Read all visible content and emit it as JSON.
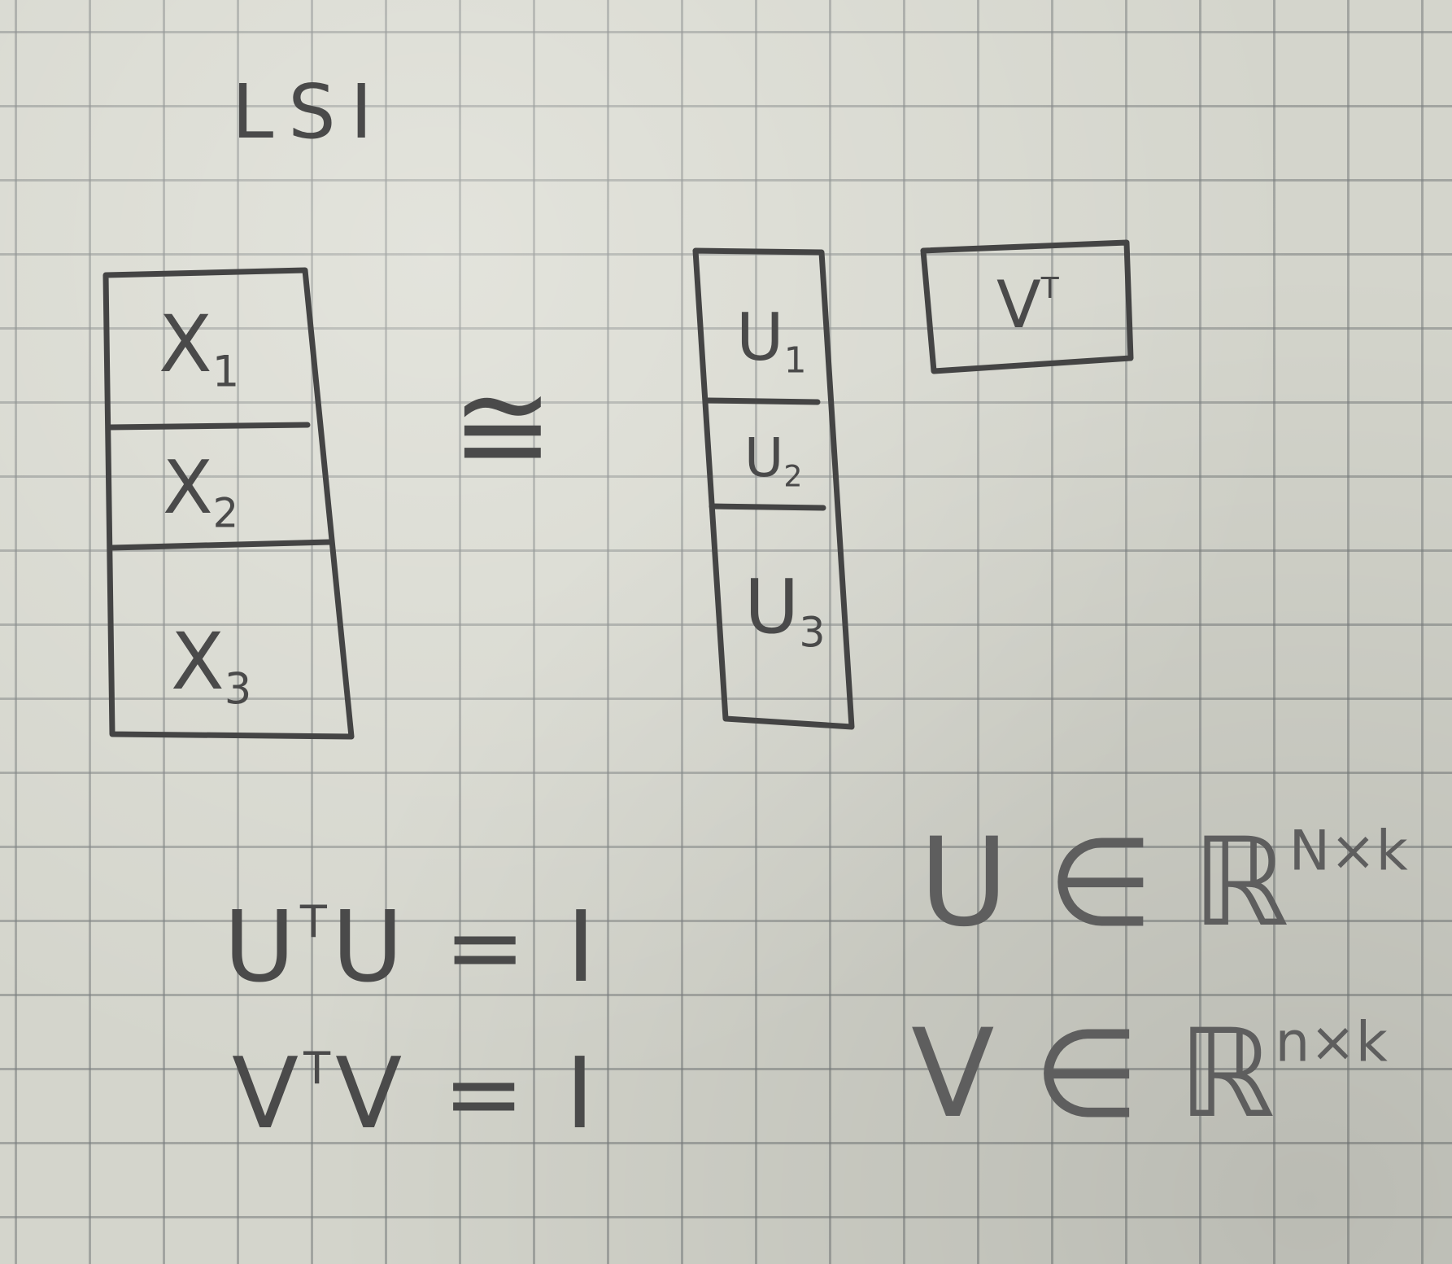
{
  "title": "LSI",
  "x_blocks": [
    "X",
    "X",
    "X"
  ],
  "x_subs": [
    "1",
    "2",
    "3"
  ],
  "approx_symbol": "≅",
  "u_blocks": [
    "U",
    "U",
    "U"
  ],
  "u_subs": [
    "1",
    "2",
    "3"
  ],
  "v_label": "V",
  "v_sup": "T",
  "eq1": {
    "lhs": "U",
    "sup": "T",
    "mid": "U",
    "rhs": "= I"
  },
  "eq2": {
    "lhs": "V",
    "sup": "T",
    "mid": "V",
    "rhs": "= I"
  },
  "dim1": {
    "lhs": "U ∈ ℝ",
    "sup": "N×k"
  },
  "dim2": {
    "lhs": "V ∈ ℝ",
    "sup": "n×k"
  }
}
